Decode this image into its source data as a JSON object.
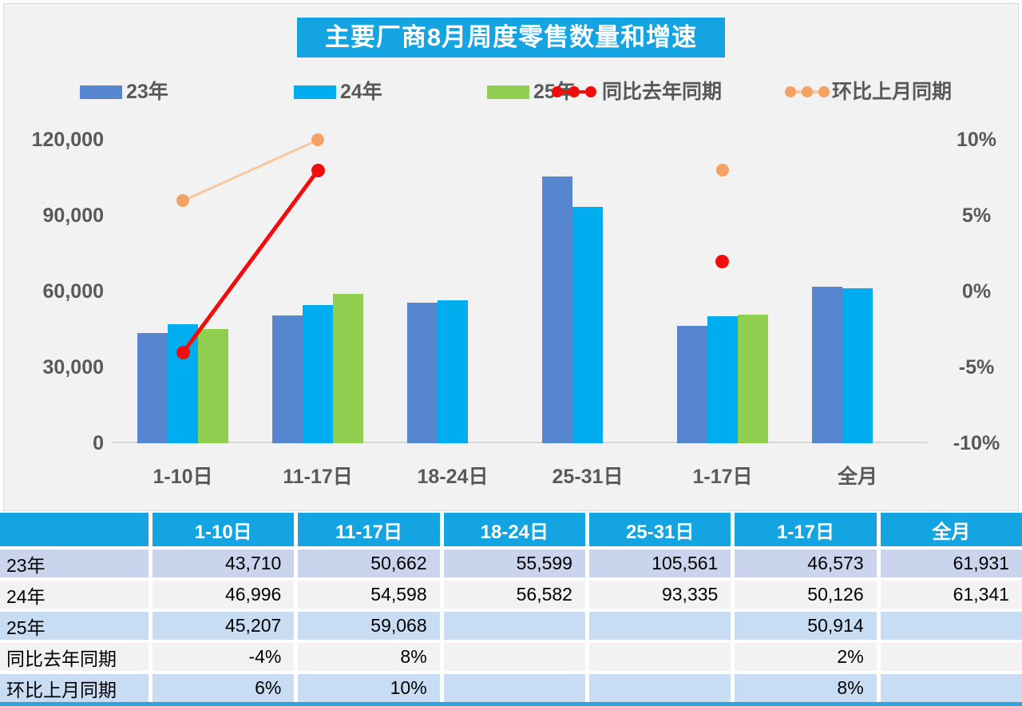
{
  "header": {
    "title": "主要厂商8月周度零售数量和增速"
  },
  "colors": {
    "title_bg": "#14A4E1",
    "page_bg": "#F2F2F2",
    "axis_text": "#595959",
    "table_header_bg": "#14A4E1",
    "row_band_lavender": "#CAD4EC",
    "row_band_gray": "#F2F2F2",
    "row_band_blue": "#C8DCF4",
    "bottom_strip": "#2FA3DC"
  },
  "chart_data": {
    "type": "bar+line",
    "title": "主要厂商8月周度零售数量和增速",
    "categories": [
      "1-10日",
      "11-17日",
      "18-24日",
      "25-31日",
      "1-17日",
      "全月"
    ],
    "bar_series": [
      {
        "name": "23年",
        "color": "#5586CF",
        "values": [
          43710,
          50662,
          55599,
          105561,
          46573,
          61931
        ]
      },
      {
        "name": "24年",
        "color": "#00AEF0",
        "values": [
          46996,
          54598,
          56582,
          93335,
          50126,
          61341
        ]
      },
      {
        "name": "25年",
        "color": "#90CE4F",
        "values": [
          45207,
          59068,
          null,
          null,
          50914,
          null
        ]
      }
    ],
    "line_series": [
      {
        "name": "同比去年同期",
        "color": "#F20D0D",
        "line_color": "#F20D0D",
        "line_width": 4.5,
        "marker_size": 17,
        "values": [
          -4,
          8,
          null,
          null,
          2,
          null
        ]
      },
      {
        "name": "环比上月同期",
        "color": "#F4A263",
        "line_color": "#F8C79E",
        "line_width": 2.5,
        "marker_size": 16,
        "values": [
          6,
          10,
          null,
          null,
          8,
          null
        ]
      }
    ],
    "left_axis": {
      "ticks": [
        "120,000",
        "90,000",
        "60,000",
        "30,000",
        "0"
      ],
      "min": 0,
      "max": 120000
    },
    "right_axis": {
      "ticks": [
        "10%",
        "5%",
        "0%",
        "-5%",
        "-10%"
      ],
      "min": -10,
      "max": 10
    },
    "legend_position": "top",
    "grid": "off"
  },
  "table": {
    "col_headers": [
      "",
      "1-10日",
      "11-17日",
      "18-24日",
      "25-31日",
      "1-17日",
      "全月"
    ],
    "rows": [
      {
        "label": "23年",
        "values": [
          "43,710",
          "50,662",
          "55,599",
          "105,561",
          "46,573",
          "61,931"
        ]
      },
      {
        "label": "24年",
        "values": [
          "46,996",
          "54,598",
          "56,582",
          "93,335",
          "50,126",
          "61,341"
        ]
      },
      {
        "label": "25年",
        "values": [
          "45,207",
          "59,068",
          "",
          "",
          "50,914",
          ""
        ]
      },
      {
        "label": "同比去年同期",
        "values": [
          "-4%",
          "8%",
          "",
          "",
          "2%",
          ""
        ]
      },
      {
        "label": "环比上月同期",
        "values": [
          "6%",
          "10%",
          "",
          "",
          "8%",
          ""
        ]
      }
    ]
  }
}
